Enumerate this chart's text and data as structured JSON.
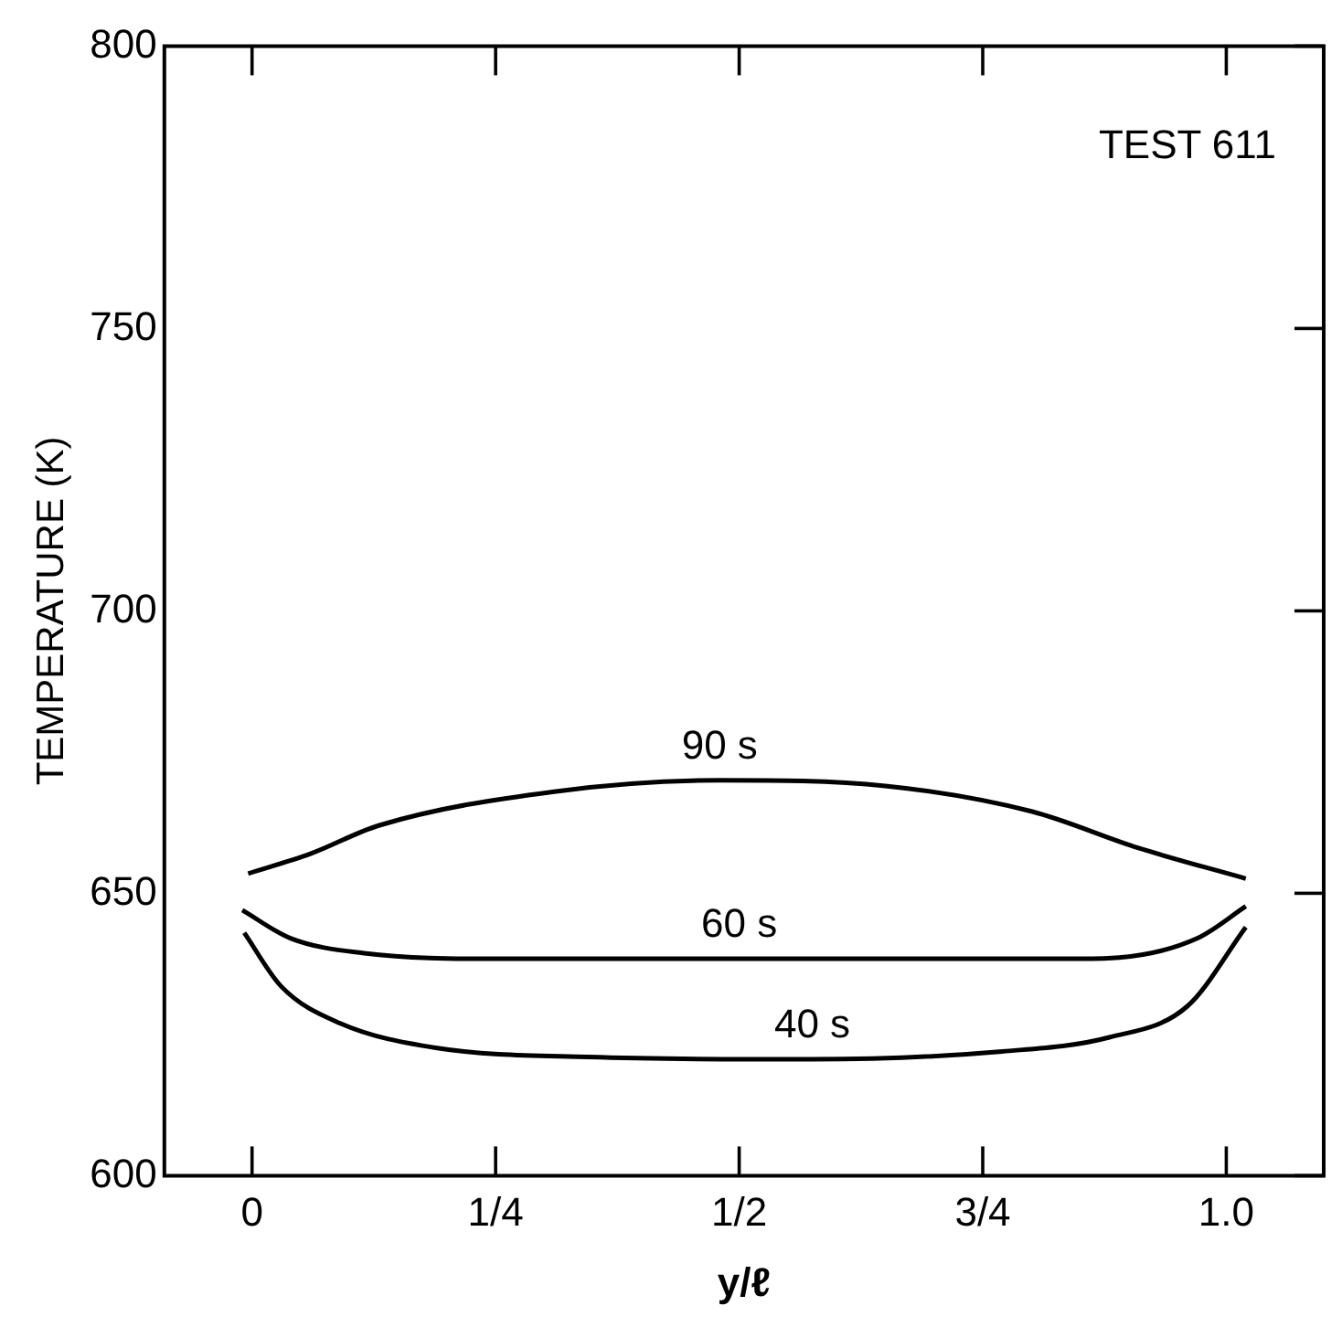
{
  "chart_data": {
    "type": "line",
    "xlabel": "y/ℓ",
    "ylabel": "TEMPERATURE (K)",
    "annotations": [
      "TEST 611"
    ],
    "xlim": [
      -0.09,
      1.1
    ],
    "xticks": [
      0,
      {
        "value": 0.25,
        "label": "1/4"
      },
      {
        "value": 0.5,
        "label": "1/2"
      },
      {
        "value": 0.75,
        "label": "3/4"
      },
      {
        "value": 1,
        "label": "1.0"
      }
    ],
    "ylim": [
      600,
      800
    ],
    "yticks": [
      600,
      650,
      700,
      750,
      800
    ],
    "grid": false,
    "legend": false,
    "marker": "none",
    "line_style": "solid",
    "series": [
      {
        "name": "90 s",
        "color": "#000000",
        "x": [
          -0.004,
          0.06,
          0.13,
          0.31,
          0.48,
          0.65,
          0.8,
          0.91,
          1.02
        ],
        "values": [
          653.5,
          657,
          662,
          668,
          670,
          669,
          664.5,
          658,
          652.6
        ]
      },
      {
        "name": "60 s",
        "color": "#000000",
        "x": [
          -0.01,
          0.04,
          0.115,
          0.25,
          0.5,
          0.85,
          0.89,
          0.97,
          1.02
        ],
        "values": [
          647,
          642,
          639.4,
          638.4,
          638.4,
          638.4,
          638.6,
          642,
          647.7
        ]
      },
      {
        "name": "40 s",
        "color": "#000000",
        "x": [
          -0.008,
          0.03,
          0.09,
          0.19,
          0.345,
          0.575,
          0.77,
          0.88,
          0.96,
          1.02
        ],
        "values": [
          643,
          633.5,
          627,
          622.6,
          621,
          620.6,
          622,
          624.5,
          630,
          644
        ]
      }
    ]
  }
}
